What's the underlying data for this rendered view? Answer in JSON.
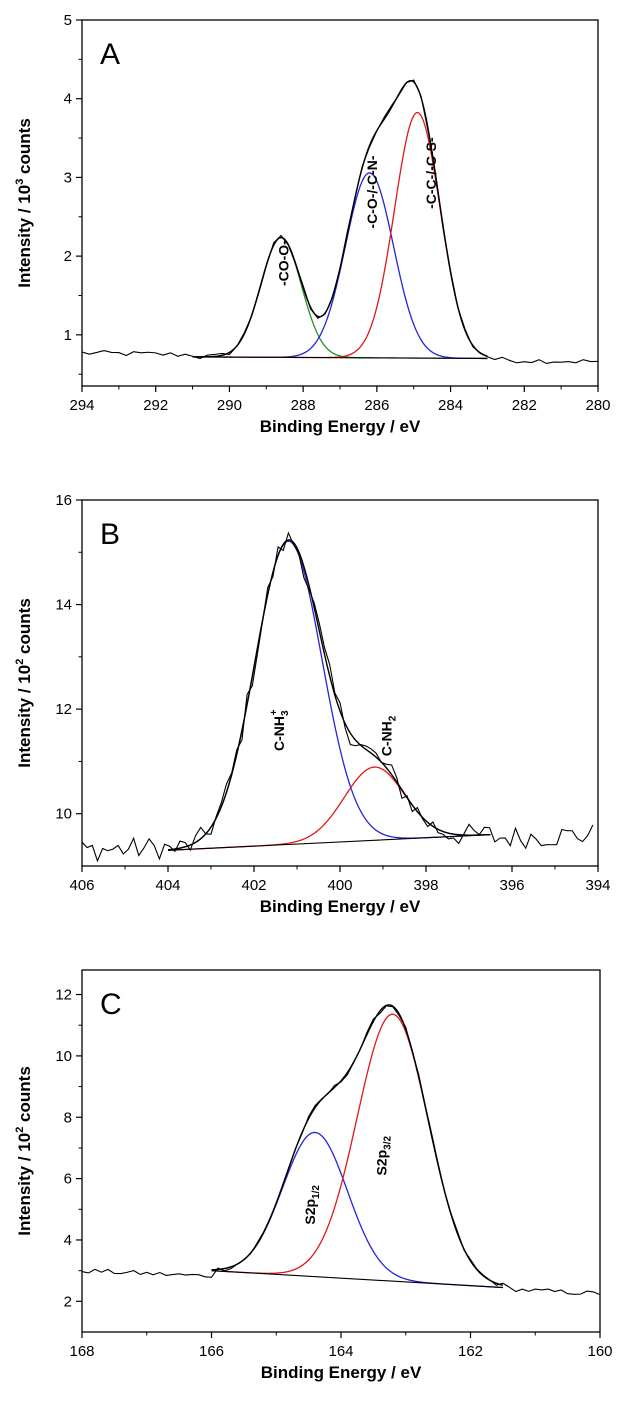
{
  "chart_data": [
    {
      "type": "line",
      "panel_label": "A",
      "xlabel": "Binding Energy / eV",
      "ylabel_main": "Intensity / 10",
      "ylabel_exp": "3",
      "ylabel_tail": " counts",
      "xlim": [
        294,
        280
      ],
      "ylim": [
        0.35,
        5
      ],
      "x_ticks": [
        294,
        292,
        290,
        288,
        286,
        284,
        282,
        280
      ],
      "y_ticks": [
        1,
        2,
        3,
        4,
        5
      ],
      "grid": false,
      "baseline": {
        "x": [
          291,
          283
        ],
        "y": [
          0.72,
          0.7
        ]
      },
      "peaks": [
        {
          "center": 288.6,
          "height": 1.52,
          "sigma": 0.55,
          "color": "#2e8b2e",
          "label": "-CO-O-",
          "label_x": 288.4,
          "label_y": 1.62
        },
        {
          "center": 286.2,
          "height": 2.35,
          "sigma": 0.65,
          "color": "#2424d8",
          "label": "-C-O-/-C-N-",
          "label_x": 286.0,
          "label_y": 2.35
        },
        {
          "center": 284.9,
          "height": 3.12,
          "sigma": 0.62,
          "color": "#e01818",
          "label": "-C-C-/-C-S-",
          "label_x": 284.4,
          "label_y": 2.6
        }
      ],
      "noise": {
        "amplitude": 0.035,
        "x_range": [
          294,
          280
        ],
        "step": 0.2,
        "bg_left": 0.77,
        "bg_right": 0.66
      }
    },
    {
      "type": "line",
      "panel_label": "B",
      "xlabel": "Binding Energy / eV",
      "ylabel_main": "Intensity / 10",
      "ylabel_exp": "2",
      "ylabel_tail": " counts",
      "xlim": [
        406,
        394
      ],
      "ylim": [
        9.0,
        16
      ],
      "x_ticks": [
        406,
        404,
        402,
        400,
        398,
        396,
        394
      ],
      "y_ticks": [
        10,
        12,
        14,
        16
      ],
      "grid": false,
      "baseline": {
        "x": [
          404,
          396.5
        ],
        "y": [
          9.3,
          9.6
        ]
      },
      "peaks": [
        {
          "center": 401.2,
          "height": 5.8,
          "sigma": 0.78,
          "color": "#2424d8",
          "label": "C-NH",
          "label_sub": "3",
          "label_sup": "+",
          "label_x": 401.3,
          "label_y": 11.2
        },
        {
          "center": 399.2,
          "height": 1.4,
          "sigma": 0.7,
          "color": "#e01818",
          "label": "C-NH",
          "label_sub": "2",
          "label_x": 398.8,
          "label_y": 11.1
        }
      ],
      "noise": {
        "amplitude": 0.22,
        "x_range": [
          406,
          394
        ],
        "step": 0.12,
        "bg_left": 9.3,
        "bg_right": 9.6
      }
    },
    {
      "type": "line",
      "panel_label": "C",
      "xlabel": "Binding Energy / eV",
      "ylabel_main": "Intensity / 10",
      "ylabel_exp": "2",
      "ylabel_tail": " counts",
      "xlim": [
        168,
        160
      ],
      "ylim": [
        1.0,
        12.8
      ],
      "x_ticks": [
        168,
        166,
        164,
        162,
        160
      ],
      "y_ticks": [
        2,
        4,
        6,
        8,
        10,
        12
      ],
      "grid": false,
      "baseline": {
        "x": [
          166,
          161.5
        ],
        "y": [
          3.0,
          2.45
        ]
      },
      "peaks": [
        {
          "center": 164.4,
          "height": 4.7,
          "sigma": 0.5,
          "color": "#2424d8",
          "label": "S2p",
          "label_sub": "1/2",
          "label_x": 164.4,
          "label_y": 4.5
        },
        {
          "center": 163.2,
          "height": 8.7,
          "sigma": 0.55,
          "color": "#e01818",
          "label": "S2p",
          "label_sub": "3/2",
          "label_x": 163.3,
          "label_y": 6.1
        }
      ],
      "noise": {
        "amplitude": 0.08,
        "x_range": [
          168,
          160
        ],
        "step": 0.1,
        "bg_left": 3.0,
        "bg_right": 2.25
      }
    }
  ]
}
